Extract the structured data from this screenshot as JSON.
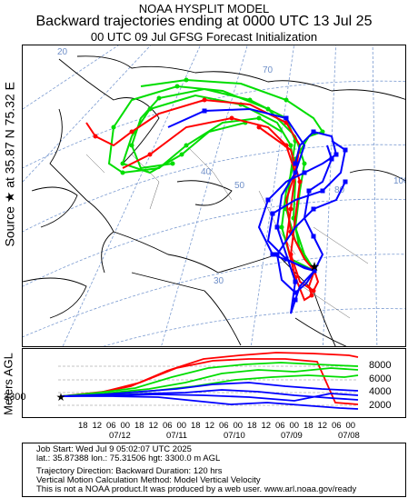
{
  "titles": {
    "line1": "NOAA HYSPLIT MODEL",
    "line2": "Backward trajectories ending at 0000 UTC 13 Jul 25",
    "line3": "00 UTC 09 Jul    GFSG  Forecast Initialization"
  },
  "side_label": "Source ★  at   35.87 N   75.32 E",
  "map": {
    "grid_labels": [
      {
        "text": "20",
        "color": "#6f8fc8"
      },
      {
        "text": "70",
        "color": "#6f8fc8"
      },
      {
        "text": "40",
        "color": "#6f8fc8"
      },
      {
        "text": "50",
        "color": "#6f8fc8"
      },
      {
        "text": "80",
        "color": "#6f8fc8"
      },
      {
        "text": "100",
        "color": "#6f8fc8"
      },
      {
        "text": "30",
        "color": "#6f8fc8"
      }
    ],
    "source": {
      "lat": 35.87,
      "lon": 75.32,
      "marker": "star-icon"
    },
    "colors": {
      "red": "#ff0000",
      "blue": "#0000ff",
      "green": "#00dd00",
      "grid": "#7a9ad0",
      "land": "#000000"
    }
  },
  "profile": {
    "ylabel": "Meters AGL",
    "yticks": [
      "8000",
      "6000",
      "4000",
      "2000"
    ],
    "source_height": "3300",
    "hour_ticks": [
      "18",
      "12",
      "06",
      "00",
      "18",
      "12",
      "06",
      "00",
      "18",
      "12",
      "06",
      "00",
      "18",
      "12",
      "06",
      "00",
      "18",
      "12",
      "06",
      "00"
    ],
    "date_labels": [
      "07/12",
      "07/11",
      "07/10",
      "07/09",
      "07/08"
    ]
  },
  "info": {
    "line1": "Job Start: Wed Jul  9 05:02:07 UTC 2025",
    "line2": "lat.: 35.87388   lon.: 75.31506   hgt: 3300.0 m AGL",
    "line3": "Trajectory Direction: Backward        Duration: 120 hrs",
    "line4": "Vertical Motion Calculation Method: Model Vertical Velocity",
    "line5": "This is not a NOAA product.It was produced by a web user. www.arl.noaa.gov/ready"
  }
}
